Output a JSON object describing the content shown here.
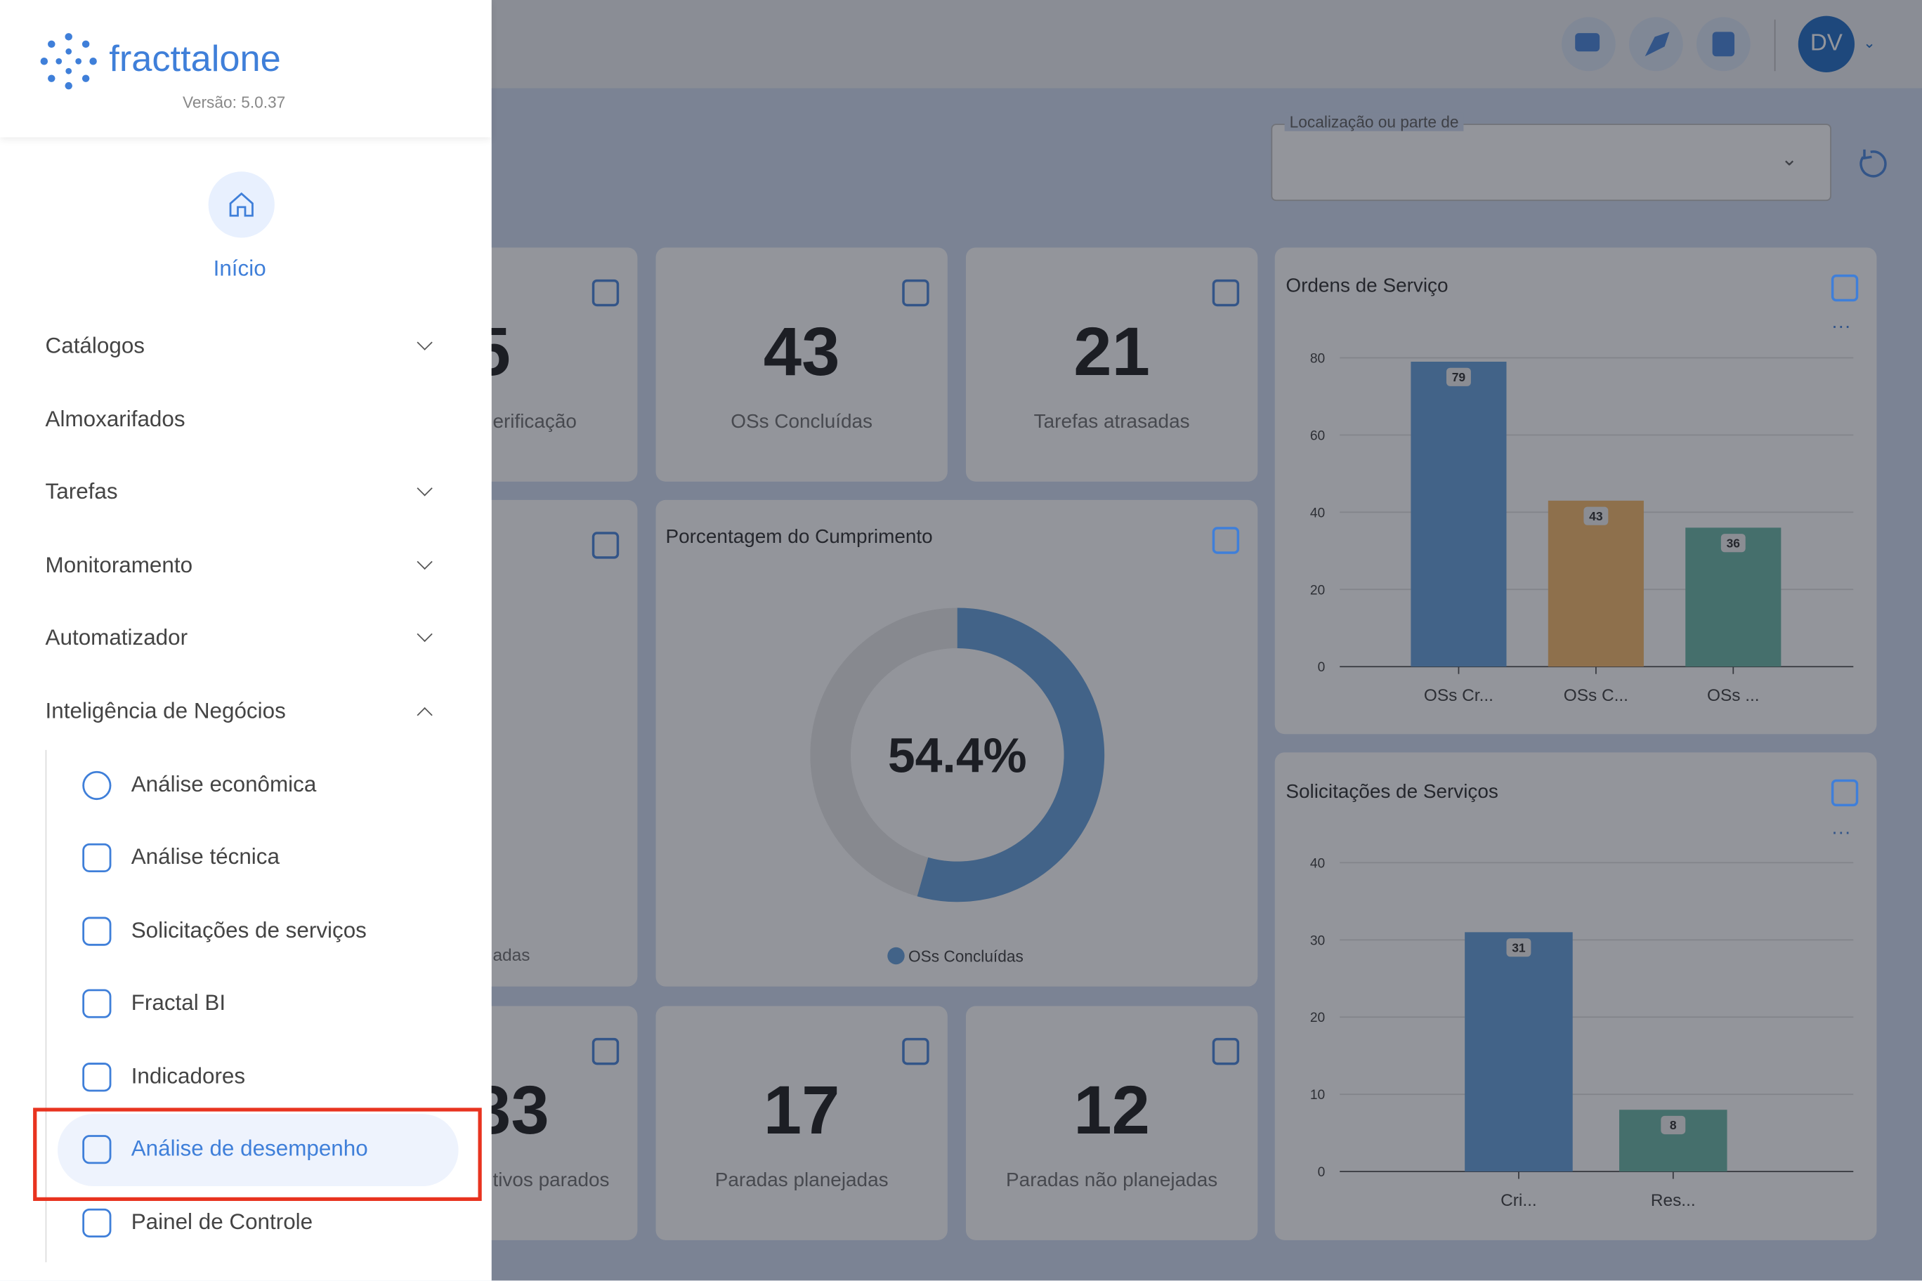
{
  "sidebar": {
    "brand": "fracttal",
    "brand_suffix": "one",
    "version": "Versão: 5.0.37",
    "home": "Início",
    "menu": [
      "Catálogos",
      "Almoxarifados",
      "Tarefas",
      "Monitoramento",
      "Automatizador",
      "Inteligência de Negócios"
    ],
    "submenu": [
      "Análise econômica",
      "Análise técnica",
      "Solicitações de serviços",
      "Fractal BI",
      "Indicadores",
      "Análise de desempenho",
      "Painel de Controle"
    ]
  },
  "header": {
    "user": "DV"
  },
  "filter": {
    "label": "Localização ou parte de"
  },
  "cards": [
    {
      "value": 5,
      "label": "erificação"
    },
    {
      "value": 43,
      "label": "OSs Concluídas"
    },
    {
      "value": 21,
      "label": "Tarefas atrasadas"
    },
    {
      "label": "adas"
    },
    {
      "value": 33,
      "label": "tivos parados"
    },
    {
      "value": 17,
      "label": "Paradas planejadas"
    },
    {
      "value": 12,
      "label": "Paradas não planejadas"
    }
  ],
  "donut": {
    "title": "Porcentagem do Cumprimento",
    "value": 54.4,
    "value_label": "54.4%",
    "legend": "OSs Concluídas",
    "color": "#5d9bd8"
  },
  "charts": [
    {
      "type": "bar",
      "title": "Ordens de Serviço",
      "categories": [
        "OSs Cr...",
        "OSs C...",
        "OSs ..."
      ],
      "values": [
        79,
        43,
        36
      ],
      "colors": [
        "#5d9bd8",
        "#f5b560",
        "#63b3a0"
      ],
      "ylim": [
        0,
        80
      ],
      "yticks": [
        0,
        20,
        40,
        60,
        80
      ]
    },
    {
      "type": "bar",
      "title": "Solicitações de Serviços",
      "categories": [
        "Cri...",
        "Res..."
      ],
      "values": [
        31,
        8
      ],
      "colors": [
        "#5d9bd8",
        "#63b3a0"
      ],
      "ylim": [
        0,
        40
      ],
      "yticks": [
        0,
        10,
        20,
        30,
        40
      ]
    }
  ]
}
